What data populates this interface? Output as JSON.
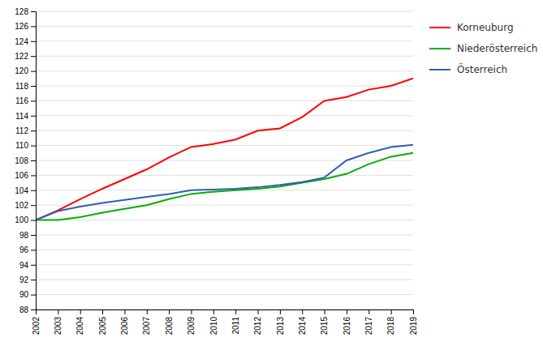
{
  "chart_data": {
    "type": "line",
    "x": [
      2002,
      2003,
      2004,
      2005,
      2006,
      2007,
      2008,
      2009,
      2010,
      2011,
      2012,
      2013,
      2014,
      2015,
      2016,
      2017,
      2018,
      2019
    ],
    "series": [
      {
        "name": "Korneuburg",
        "color": "#FF0000",
        "values": [
          100.0,
          101.3,
          102.8,
          104.2,
          105.5,
          106.8,
          108.4,
          109.8,
          110.2,
          110.8,
          112.0,
          112.3,
          113.8,
          116.0,
          116.5,
          117.5,
          118.0,
          119.0
        ]
      },
      {
        "name": "Niederösterreich",
        "color": "#00B000",
        "values": [
          100.0,
          100.0,
          100.4,
          101.0,
          101.5,
          102.0,
          102.8,
          103.5,
          103.8,
          104.0,
          104.2,
          104.5,
          105.0,
          105.5,
          106.2,
          107.5,
          108.5,
          109.0
        ]
      },
      {
        "name": "Österreich",
        "color": "#3060B0",
        "values": [
          100.0,
          101.2,
          101.8,
          102.3,
          102.7,
          103.1,
          103.5,
          104.0,
          104.1,
          104.2,
          104.4,
          104.7,
          105.1,
          105.7,
          108.0,
          109.0,
          109.8,
          110.1
        ]
      }
    ],
    "xlim": [
      2002,
      2019
    ],
    "xticks": [
      2002,
      2003,
      2004,
      2005,
      2006,
      2007,
      2008,
      2009,
      2010,
      2011,
      2012,
      2013,
      2014,
      2015,
      2016,
      2017,
      2018,
      2019
    ],
    "ylim": [
      88,
      128
    ],
    "yticks": [
      88,
      90,
      92,
      94,
      96,
      98,
      100,
      102,
      104,
      106,
      108,
      110,
      112,
      114,
      116,
      118,
      120,
      122,
      124,
      126,
      128
    ],
    "grid": "y",
    "legend": "right"
  }
}
